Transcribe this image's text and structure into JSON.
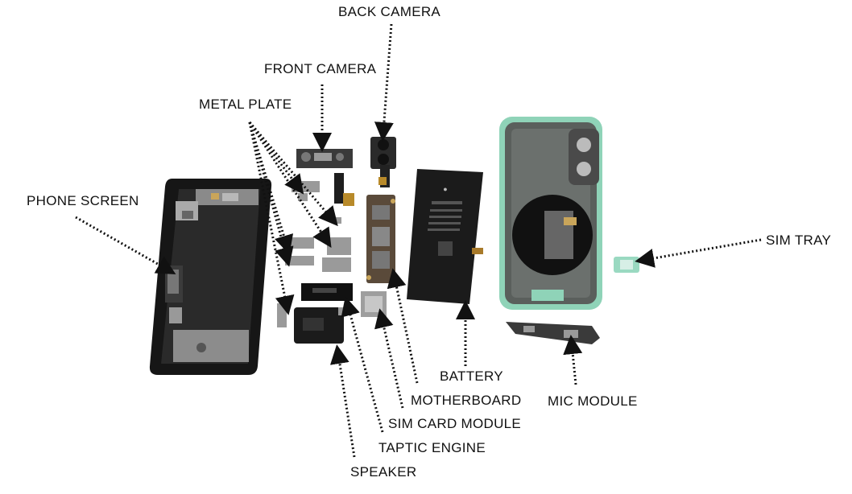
{
  "labels": {
    "back_camera": "BACK CAMERA",
    "front_camera": "FRONT CAMERA",
    "metal_plate": "METAL PLATE",
    "phone_screen": "PHONE SCREEN",
    "sim_tray": "SIM TRAY",
    "battery": "BATTERY",
    "motherboard": "MOTHERBOARD",
    "mic_module": "MIC MODULE",
    "sim_card_module": "SIM CARD MODULE",
    "taptic_engine": "TAPTIC ENGINE",
    "speaker": "SPEAKER"
  },
  "colors": {
    "frame_green": "#8fd3b8",
    "screen_black": "#161616",
    "battery_black": "#1b1b1b",
    "board_brown": "#5a4a3a",
    "metal_gray": "#9a9a9a",
    "arrow": "#111111"
  }
}
